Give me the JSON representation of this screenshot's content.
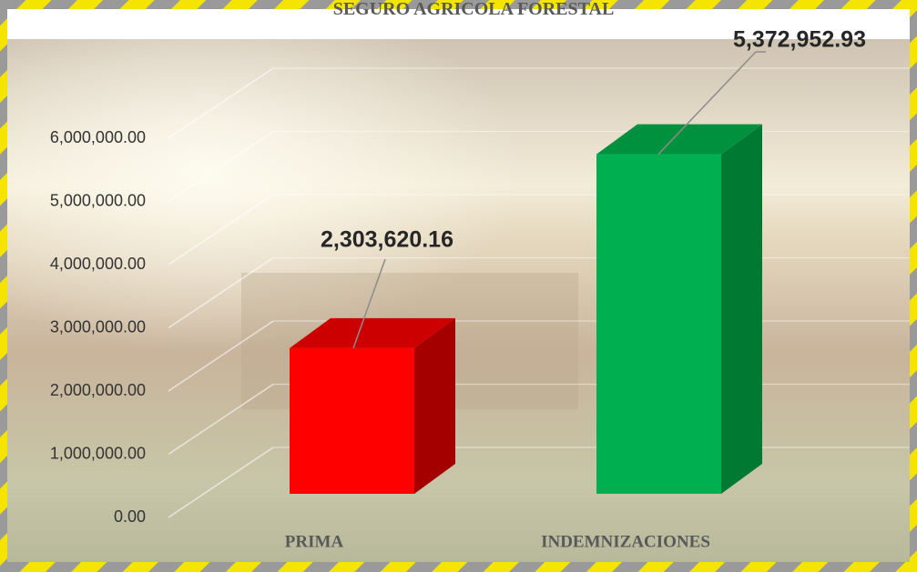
{
  "chart_data": {
    "type": "bar3d",
    "title": "SEGURO AGRICOLA FORESTAL",
    "categories": [
      "PRIMA",
      "INDEMNIZACIONES"
    ],
    "values": [
      2303620.16,
      5372952.93
    ],
    "value_labels": [
      "2,303,620.16",
      "5,372,952.93"
    ],
    "colors": [
      "#ff0000",
      "#00b050"
    ],
    "side_colors": [
      "#a50000",
      "#007a33"
    ],
    "top_colors": [
      "#cc0000",
      "#00913f"
    ],
    "ylim": [
      0,
      6000000
    ],
    "yticks": [
      {
        "value": 0,
        "label": "0.00"
      },
      {
        "value": 1000000,
        "label": "1,000,000.00"
      },
      {
        "value": 2000000,
        "label": "2,000,000.00"
      },
      {
        "value": 3000000,
        "label": "3,000,000.00"
      },
      {
        "value": 4000000,
        "label": "4,000,000.00"
      },
      {
        "value": 5000000,
        "label": "5,000,000.00"
      },
      {
        "value": 6000000,
        "label": "6,000,000.00"
      }
    ],
    "grid": true
  }
}
